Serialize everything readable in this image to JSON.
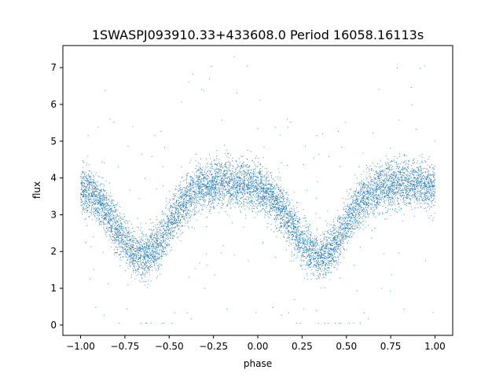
{
  "chart_data": {
    "type": "scatter",
    "title": "1SWASPJ093910.33+433608.0 Period 16058.16113s",
    "xlabel": "phase",
    "ylabel": "flux",
    "xlim": [
      -1.1,
      1.1
    ],
    "ylim": [
      -0.28,
      7.6
    ],
    "x_ticks": [
      -1.0,
      -0.75,
      -0.5,
      -0.25,
      0.0,
      0.25,
      0.5,
      0.75,
      1.0
    ],
    "x_tick_labels": [
      "−1.00",
      "−0.75",
      "−0.50",
      "−0.25",
      "0.00",
      "0.25",
      "0.50",
      "0.75",
      "1.00"
    ],
    "y_ticks": [
      0,
      1,
      2,
      3,
      4,
      5,
      6,
      7
    ],
    "y_tick_labels": [
      "0",
      "1",
      "2",
      "3",
      "4",
      "5",
      "6",
      "7"
    ],
    "grid": false,
    "legend": "none",
    "point_color": "#1f77b4",
    "border_color": "#000000",
    "phase_range": [
      -1.0,
      1.0
    ],
    "curve_profile": {
      "phase": [
        0.0,
        0.05,
        0.1,
        0.15,
        0.2,
        0.25,
        0.3,
        0.35,
        0.4,
        0.45,
        0.5,
        0.55,
        0.6,
        0.65,
        0.7,
        0.75,
        0.8,
        0.85,
        0.9,
        0.95,
        1.0
      ],
      "flux": [
        3.75,
        3.6,
        3.35,
        3.05,
        2.65,
        2.25,
        1.95,
        1.85,
        1.95,
        2.3,
        2.75,
        3.15,
        3.45,
        3.65,
        3.75,
        3.8,
        3.85,
        3.85,
        3.85,
        3.8,
        3.75
      ]
    },
    "scatter_sd": 0.32,
    "n_points": 9000,
    "n_outliers": 140
  }
}
